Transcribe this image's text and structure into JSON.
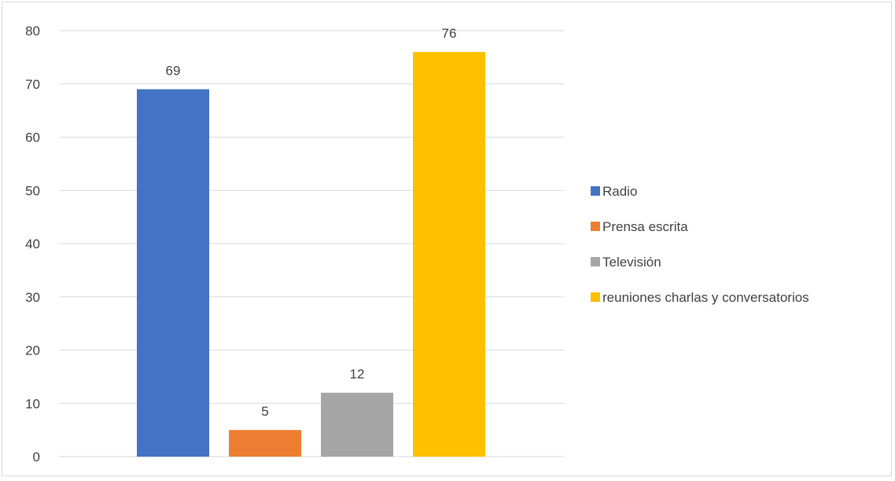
{
  "chart_data": {
    "type": "bar",
    "title": "",
    "xlabel": "",
    "ylabel": "",
    "ylim": [
      0,
      80
    ],
    "yticks": [
      0,
      10,
      20,
      30,
      40,
      50,
      60,
      70,
      80
    ],
    "grid": true,
    "legend_position": "right",
    "series": [
      {
        "name": "Radio",
        "value": 69,
        "color": "#4472c4"
      },
      {
        "name": "Prensa escrita",
        "value": 5,
        "color": "#ed7d31"
      },
      {
        "name": "Televisión",
        "value": 12,
        "color": "#a5a5a5"
      },
      {
        "name": "reuniones charlas y conversatorios",
        "value": 76,
        "color": "#ffc000"
      }
    ]
  }
}
